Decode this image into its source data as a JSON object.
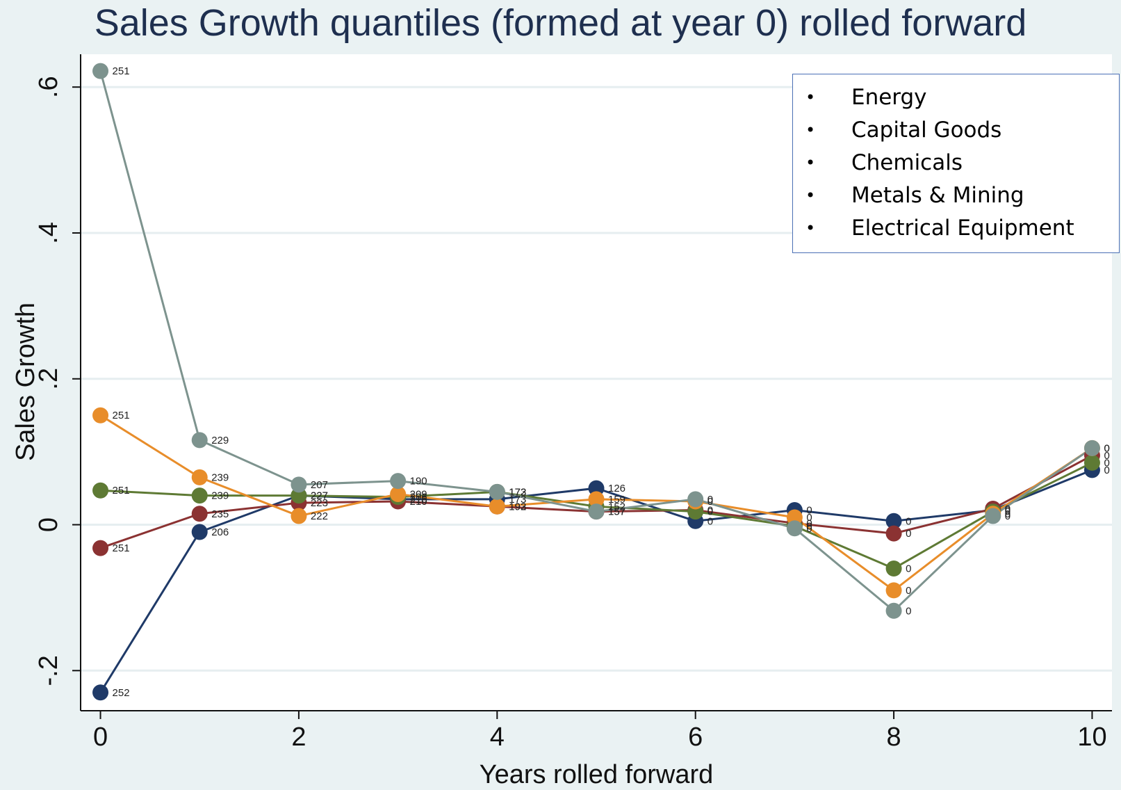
{
  "chart_data": {
    "type": "line",
    "title": "Sales Growth quantiles (formed at year 0) rolled forward",
    "xlabel": "Years rolled forward",
    "ylabel": "Sales Growth",
    "xlim": [
      -0.2,
      10.2
    ],
    "ylim": [
      -0.255,
      0.645
    ],
    "xticks": [
      0,
      2,
      4,
      6,
      8,
      10
    ],
    "yticks": [
      -0.2,
      0,
      0.2,
      0.4,
      0.6
    ],
    "ytick_labels": [
      "-.2",
      "0",
      ".2",
      ".4",
      ".6"
    ],
    "grid": true,
    "legend_position": "top-right",
    "legend_items": [
      "Energy",
      "Capital Goods",
      "Chemicals",
      "Metals & Mining",
      "Electrical Equipment"
    ],
    "x": [
      0,
      1,
      2,
      3,
      4,
      5,
      6,
      7,
      8,
      9,
      10
    ],
    "series": [
      {
        "color": "#1f3a68",
        "values": [
          -0.23,
          -0.01,
          0.04,
          0.035,
          0.035,
          0.05,
          0.005,
          0.02,
          0.005,
          0.02,
          0.075
        ],
        "point_labels": [
          "252",
          "206",
          "227",
          "216",
          "173",
          "126",
          "0",
          "0",
          "0",
          "0",
          "0"
        ]
      },
      {
        "color": "#8b3232",
        "values": [
          -0.032,
          0.015,
          0.03,
          0.032,
          0.025,
          0.018,
          0.02,
          0.002,
          -0.012,
          0.022,
          0.095
        ],
        "point_labels": [
          "251",
          "235",
          "223",
          "210",
          "193",
          "157",
          "0",
          "0",
          "0",
          "0",
          "0"
        ]
      },
      {
        "color": "#5e7a34",
        "values": [
          0.047,
          0.04,
          0.04,
          0.038,
          0.045,
          0.025,
          0.018,
          -0.002,
          -0.06,
          0.018,
          0.085
        ],
        "point_labels": [
          "251",
          "239",
          "227",
          "206",
          "172",
          "152",
          "0",
          "0",
          "0",
          "0",
          "0"
        ]
      },
      {
        "color": "#e88d2a",
        "values": [
          0.15,
          0.065,
          0.012,
          0.042,
          0.025,
          0.035,
          0.032,
          0.01,
          -0.09,
          0.015,
          0.105
        ],
        "point_labels": [
          "251",
          "239",
          "222",
          "209",
          "192",
          "159",
          "0",
          "0",
          "0",
          "0",
          "0"
        ]
      },
      {
        "color": "#7d938e",
        "values": [
          0.622,
          0.116,
          0.055,
          0.06,
          0.045,
          0.018,
          0.035,
          -0.005,
          -0.118,
          0.012,
          0.105
        ],
        "point_labels": [
          "251",
          "229",
          "207",
          "190",
          "173",
          "157",
          "0",
          "0",
          "0",
          "0",
          "0"
        ]
      }
    ]
  }
}
